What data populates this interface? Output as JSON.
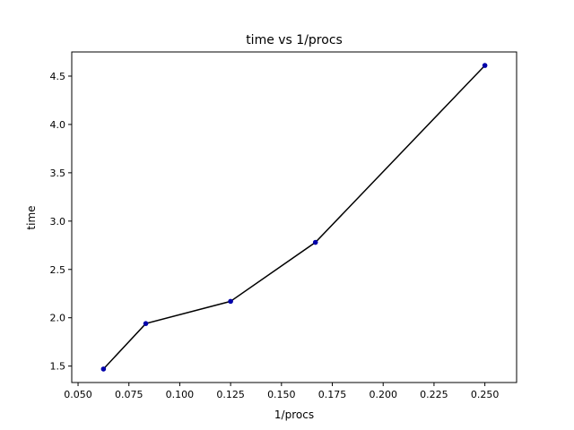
{
  "chart_data": {
    "type": "line",
    "title": "time vs 1/procs",
    "xlabel": "1/procs",
    "ylabel": "time",
    "xlim": [
      0.0469,
      0.2656
    ],
    "ylim": [
      1.33,
      4.75
    ],
    "xticks": [
      "0.050",
      "0.075",
      "0.100",
      "0.125",
      "0.150",
      "0.175",
      "0.200",
      "0.225",
      "0.250"
    ],
    "yticks": [
      "1.5",
      "2.0",
      "2.5",
      "3.0",
      "3.5",
      "4.0",
      "4.5"
    ],
    "grid": false,
    "series": [
      {
        "x": [
          0.0625,
          0.0833,
          0.125,
          0.1667,
          0.25
        ],
        "y": [
          1.47,
          1.94,
          2.17,
          2.78,
          4.61
        ],
        "line_color": "#000000",
        "marker_color": "#0000aa"
      }
    ]
  }
}
